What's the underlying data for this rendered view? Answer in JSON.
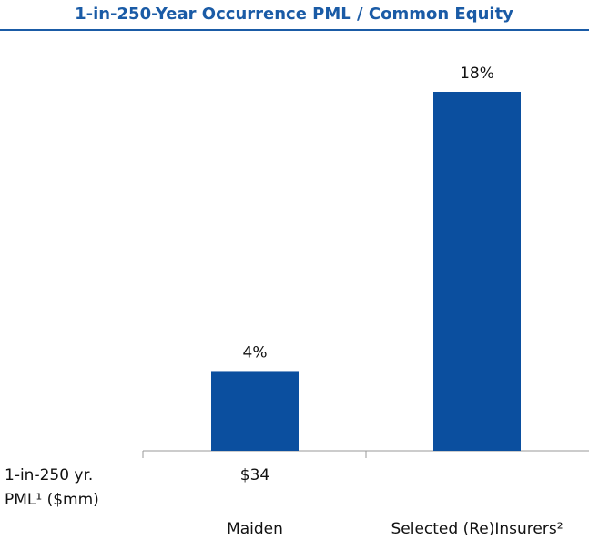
{
  "chart_data": {
    "type": "bar",
    "title": "1-in-250-Year Occurrence PML / Common Equity",
    "categories": [
      "Maiden",
      "Selected (Re)Insurers²"
    ],
    "values": [
      4,
      18
    ],
    "value_labels": [
      "4%",
      "18%"
    ],
    "color": "#0b4f9f",
    "pml_row": {
      "label_lines": [
        "1-in-250 yr.",
        "PML¹ ($mm)"
      ],
      "cells": [
        "$34"
      ]
    }
  }
}
